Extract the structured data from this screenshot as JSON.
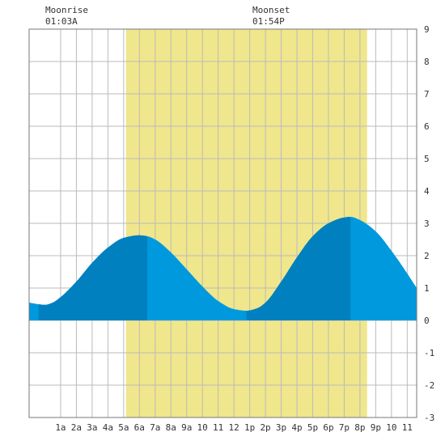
{
  "chart_data": {
    "type": "area",
    "x_unit": "hours since midnight",
    "xlim": [
      -1,
      23.6
    ],
    "ylim": [
      -3,
      9
    ],
    "y_ticks": [
      -3,
      -2,
      -1,
      0,
      1,
      2,
      3,
      4,
      5,
      6,
      7,
      8,
      9
    ],
    "x_tick_positions": [
      1,
      2,
      3,
      4,
      5,
      6,
      7,
      8,
      9,
      10,
      11,
      12,
      13,
      14,
      15,
      16,
      17,
      18,
      19,
      20,
      21,
      22,
      23
    ],
    "x_tick_labels": [
      "1a",
      "2a",
      "3a",
      "4a",
      "5a",
      "6a",
      "7a",
      "8a",
      "9a",
      "10",
      "11",
      "12",
      "1p",
      "2p",
      "3p",
      "4p",
      "5p",
      "6p",
      "7p",
      "8p",
      "9p",
      "10",
      "11"
    ],
    "daylight": [
      5.15,
      20.45
    ],
    "moonrise": {
      "label": "Moonrise",
      "time": "01:03A",
      "hour": 1.05
    },
    "moonset": {
      "label": "Moonset",
      "time": "01:54P",
      "hour": 13.9
    },
    "grid": true,
    "tide_curve": [
      {
        "hour": -1.0,
        "height": 0.55
      },
      {
        "hour": -0.4,
        "height": 0.5
      },
      {
        "hour": 0.0,
        "height": 0.48
      },
      {
        "hour": 0.5,
        "height": 0.55
      },
      {
        "hour": 1.0,
        "height": 0.72
      },
      {
        "hour": 2.0,
        "height": 1.2
      },
      {
        "hour": 3.0,
        "height": 1.78
      },
      {
        "hour": 4.0,
        "height": 2.25
      },
      {
        "hour": 5.0,
        "height": 2.55
      },
      {
        "hour": 6.0,
        "height": 2.63
      },
      {
        "hour": 6.5,
        "height": 2.6
      },
      {
        "hour": 7.0,
        "height": 2.5
      },
      {
        "hour": 8.0,
        "height": 2.1
      },
      {
        "hour": 9.0,
        "height": 1.58
      },
      {
        "hour": 10.0,
        "height": 1.05
      },
      {
        "hour": 11.0,
        "height": 0.6
      },
      {
        "hour": 12.0,
        "height": 0.35
      },
      {
        "hour": 12.8,
        "height": 0.3
      },
      {
        "hour": 13.5,
        "height": 0.38
      },
      {
        "hour": 14.0,
        "height": 0.55
      },
      {
        "hour": 15.0,
        "height": 1.2
      },
      {
        "hour": 16.0,
        "height": 1.95
      },
      {
        "hour": 17.0,
        "height": 2.6
      },
      {
        "hour": 18.0,
        "height": 3.0
      },
      {
        "hour": 19.0,
        "height": 3.18
      },
      {
        "hour": 19.4,
        "height": 3.2
      },
      {
        "hour": 20.0,
        "height": 3.1
      },
      {
        "hour": 21.0,
        "height": 2.75
      },
      {
        "hour": 22.0,
        "height": 2.15
      },
      {
        "hour": 23.0,
        "height": 1.45
      },
      {
        "hour": 23.6,
        "height": 1.0
      }
    ],
    "dark_bands": [
      [
        -0.4,
        6.5
      ],
      [
        12.8,
        19.4
      ]
    ],
    "colors": {
      "daylight": "#f0e68c",
      "tide_light": "#0099dd",
      "tide_dark": "#0080bf",
      "grid": "#bbbbbb",
      "border": "#777777"
    }
  }
}
